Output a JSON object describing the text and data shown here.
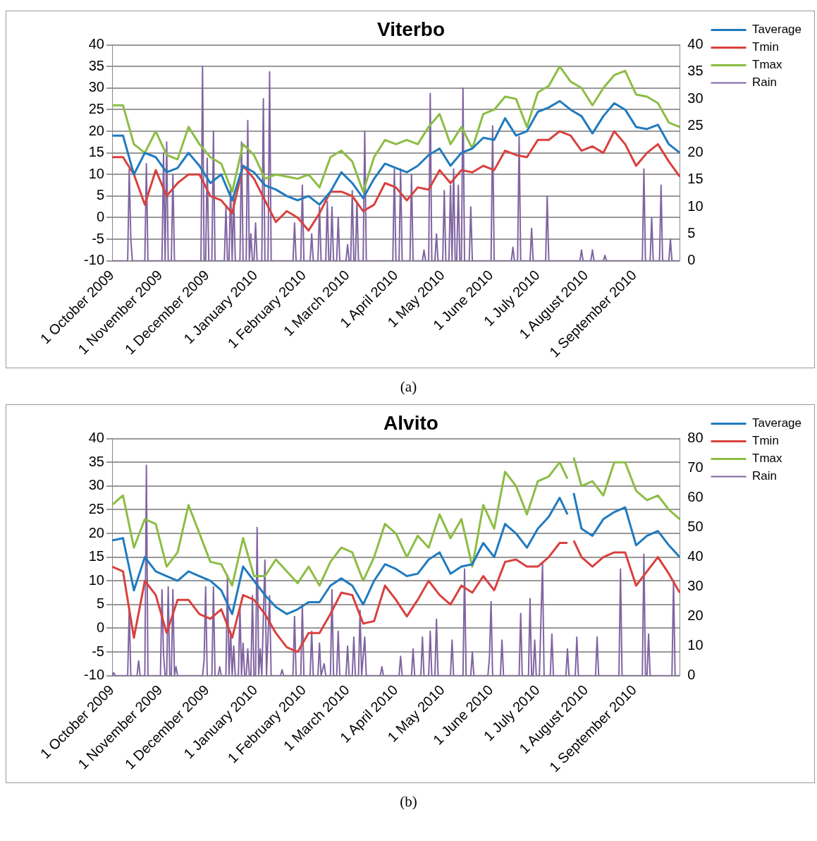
{
  "chart_data": [
    {
      "type": "line",
      "title": "Viterbo",
      "annotations": [
        "(a)"
      ],
      "legend": "top right",
      "grid": "y",
      "marker": "none",
      "xlim": [
        "2009-10-01",
        "2010-09-30"
      ],
      "xticks": [
        {
          "value": "2009-10-01",
          "label": "1 October 2009"
        },
        {
          "value": "2009-11-01",
          "label": "1 November 2009"
        },
        {
          "value": "2009-12-01",
          "label": "1 December 2009"
        },
        {
          "value": "2010-01-01",
          "label": "1 January 2010"
        },
        {
          "value": "2010-02-01",
          "label": "1 February 2010"
        },
        {
          "value": "2010-03-01",
          "label": "1 March 2010"
        },
        {
          "value": "2010-04-01",
          "label": "1 April 2010"
        },
        {
          "value": "2010-05-01",
          "label": "1 May 2010"
        },
        {
          "value": "2010-06-01",
          "label": "1 June 2010"
        },
        {
          "value": "2010-07-01",
          "label": "1 July 2010"
        },
        {
          "value": "2010-08-01",
          "label": "1 August 2010"
        },
        {
          "value": "2010-09-01",
          "label": "1 September 2010"
        }
      ],
      "ylim": [
        -10,
        40
      ],
      "yticks": [
        -10,
        -5,
        0,
        5,
        10,
        15,
        20,
        25,
        30,
        35,
        40
      ],
      "y2lim": [
        0,
        40
      ],
      "y2ticks": [
        0,
        5,
        10,
        15,
        20,
        25,
        30,
        35,
        40
      ],
      "x": [
        "2009-10-01",
        "2009-10-08",
        "2009-10-15",
        "2009-10-22",
        "2009-10-29",
        "2009-11-05",
        "2009-11-12",
        "2009-11-19",
        "2009-11-26",
        "2009-12-03",
        "2009-12-10",
        "2009-12-17",
        "2009-12-24",
        "2009-12-31",
        "2010-01-07",
        "2010-01-14",
        "2010-01-21",
        "2010-01-28",
        "2010-02-04",
        "2010-02-11",
        "2010-02-18",
        "2010-02-25",
        "2010-03-04",
        "2010-03-11",
        "2010-03-18",
        "2010-03-25",
        "2010-04-01",
        "2010-04-08",
        "2010-04-15",
        "2010-04-22",
        "2010-04-29",
        "2010-05-06",
        "2010-05-13",
        "2010-05-20",
        "2010-05-27",
        "2010-06-03",
        "2010-06-10",
        "2010-06-17",
        "2010-06-24",
        "2010-07-01",
        "2010-07-08",
        "2010-07-15",
        "2010-07-22",
        "2010-07-29",
        "2010-08-05",
        "2010-08-12",
        "2010-08-19",
        "2010-08-26",
        "2010-09-02",
        "2010-09-09",
        "2010-09-16",
        "2010-09-23",
        "2010-09-30"
      ],
      "series": [
        {
          "name": "Taverage",
          "color": "#1f7bbf",
          "values": [
            19,
            19,
            10,
            15,
            14,
            10.5,
            11.5,
            15,
            12,
            8,
            10,
            4,
            12,
            10.5,
            7.5,
            6.5,
            5,
            4,
            5,
            3,
            6,
            10.5,
            8,
            4.5,
            9,
            12.5,
            11.5,
            10.5,
            12,
            14.5,
            16,
            12,
            15,
            16,
            18.5,
            18,
            23,
            19,
            20,
            24.5,
            25.5,
            27,
            25,
            23.5,
            19.5,
            23.5,
            26.5,
            25,
            21,
            20.5,
            21.5,
            17,
            15
          ]
        },
        {
          "name": "Tmin",
          "color": "#d9413e",
          "values": [
            14,
            14,
            10,
            3,
            11,
            5,
            8,
            10,
            10,
            5,
            4,
            1,
            12,
            9,
            4,
            -1,
            1.5,
            0,
            -3,
            1,
            6,
            6,
            5,
            1.5,
            3,
            8,
            7,
            4,
            7,
            6.5,
            11,
            8,
            11,
            10.5,
            12,
            11,
            15.5,
            14.5,
            14,
            18,
            18,
            20,
            19,
            15.5,
            16.5,
            15,
            20,
            17,
            12,
            15,
            17,
            13,
            9.5
          ]
        },
        {
          "name": "Tmax",
          "color": "#8cbd45",
          "values": [
            26,
            26,
            17,
            15,
            20,
            14.5,
            13.5,
            21,
            17,
            14,
            12.5,
            6,
            17,
            14.5,
            9,
            10,
            9.5,
            9,
            10,
            7,
            14,
            15.5,
            13,
            6,
            14,
            18,
            17,
            18,
            17,
            21,
            24,
            17,
            21,
            16,
            24,
            25,
            28,
            27.5,
            21,
            29,
            30.5,
            35,
            31.5,
            30,
            26,
            30,
            33,
            34,
            28.5,
            28,
            26.5,
            22,
            21
          ]
        },
        {
          "name": "Rain",
          "color": "#8064a2",
          "axis": "y2",
          "x": [
            "2009-10-01",
            "2009-10-11",
            "2009-10-12",
            "2009-10-13",
            "2009-10-14",
            "2009-10-22",
            "2009-10-23",
            "2009-10-24",
            "2009-11-02",
            "2009-11-03",
            "2009-11-04",
            "2009-11-05",
            "2009-11-06",
            "2009-11-08",
            "2009-11-09",
            "2009-11-10",
            "2009-11-27",
            "2009-11-28",
            "2009-11-29",
            "2009-11-30",
            "2009-12-01",
            "2009-12-02",
            "2009-12-04",
            "2009-12-05",
            "2009-12-06",
            "2009-12-12",
            "2009-12-13",
            "2009-12-14",
            "2009-12-15",
            "2009-12-16",
            "2009-12-17",
            "2009-12-18",
            "2009-12-19",
            "2009-12-22",
            "2009-12-23",
            "2009-12-24",
            "2009-12-26",
            "2009-12-27",
            "2009-12-28",
            "2009-12-29",
            "2009-12-30",
            "2009-12-31",
            "2010-01-01",
            "2010-01-02",
            "2010-01-05",
            "2010-01-06",
            "2010-01-07",
            "2010-01-09",
            "2010-01-10",
            "2010-01-11",
            "2010-01-25",
            "2010-01-26",
            "2010-01-27",
            "2010-01-30",
            "2010-01-31",
            "2010-02-01",
            "2010-02-05",
            "2010-02-06",
            "2010-02-07",
            "2010-02-10",
            "2010-02-11",
            "2010-02-12",
            "2010-02-15",
            "2010-02-16",
            "2010-02-17",
            "2010-02-18",
            "2010-02-19",
            "2010-02-20",
            "2010-02-22",
            "2010-02-23",
            "2010-02-24",
            "2010-02-28",
            "2010-03-01",
            "2010-03-02",
            "2010-03-03",
            "2010-03-04",
            "2010-03-05",
            "2010-03-06",
            "2010-03-07",
            "2010-03-08",
            "2010-03-11",
            "2010-03-12",
            "2010-03-13",
            "2010-03-30",
            "2010-03-31",
            "2010-04-01",
            "2010-04-03",
            "2010-04-04",
            "2010-04-05",
            "2010-04-10",
            "2010-04-11",
            "2010-04-12",
            "2010-04-18",
            "2010-04-19",
            "2010-04-20",
            "2010-04-22",
            "2010-04-23",
            "2010-04-24",
            "2010-04-26",
            "2010-04-27",
            "2010-04-28",
            "2010-05-01",
            "2010-05-02",
            "2010-05-03",
            "2010-05-05",
            "2010-05-06",
            "2010-05-07",
            "2010-05-08",
            "2010-05-09",
            "2010-05-10",
            "2010-05-11",
            "2010-05-12",
            "2010-05-13",
            "2010-05-14",
            "2010-05-15",
            "2010-05-18",
            "2010-05-19",
            "2010-05-20",
            "2010-06-01",
            "2010-06-02",
            "2010-06-03",
            "2010-06-14",
            "2010-06-15",
            "2010-06-16",
            "2010-06-18",
            "2010-06-19",
            "2010-06-20",
            "2010-06-26",
            "2010-06-27",
            "2010-06-28",
            "2010-07-06",
            "2010-07-07",
            "2010-07-08",
            "2010-07-28",
            "2010-07-29",
            "2010-07-30",
            "2010-08-04",
            "2010-08-05",
            "2010-08-06",
            "2010-08-12",
            "2010-08-13",
            "2010-08-14",
            "2010-09-06",
            "2010-09-07",
            "2010-09-08",
            "2010-09-11",
            "2010-09-12",
            "2010-09-13",
            "2010-09-17",
            "2010-09-18",
            "2010-09-19",
            "2010-09-23",
            "2010-09-24",
            "2010-09-25",
            "2010-09-30"
          ],
          "values": [
            0,
            0,
            17,
            4,
            0,
            0,
            18,
            0,
            0,
            20,
            0,
            22,
            0,
            0,
            16,
            0,
            0,
            36,
            0,
            0,
            19,
            0,
            0,
            24,
            0,
            0,
            10,
            0,
            0,
            14,
            0,
            12,
            0,
            0,
            22,
            0,
            0,
            26,
            0,
            5,
            0,
            0,
            7,
            0,
            0,
            30,
            0,
            0,
            35,
            0,
            0,
            7,
            0,
            0,
            14,
            0,
            0,
            5,
            0,
            0,
            10,
            0,
            0,
            11,
            0,
            0,
            10,
            0,
            0,
            8,
            0,
            0,
            3,
            0,
            0,
            13,
            0,
            0,
            11,
            0,
            0,
            24,
            0,
            0,
            17,
            0,
            0,
            17,
            0,
            0,
            16,
            0,
            0,
            2,
            0,
            0,
            31,
            0,
            0,
            5,
            0,
            0,
            13,
            0,
            0,
            14,
            0,
            17,
            0,
            0,
            14,
            0,
            0,
            32,
            0,
            0,
            10,
            0,
            0,
            25,
            0,
            0,
            2.5,
            0,
            0,
            23,
            0,
            0,
            6,
            0,
            0,
            12,
            0,
            0,
            2,
            0,
            0,
            2,
            0,
            0,
            1,
            0,
            0,
            17,
            0,
            0,
            8,
            0,
            0,
            14,
            0,
            0,
            4,
            0,
            0
          ]
        }
      ]
    },
    {
      "type": "line",
      "title": "Alvito",
      "annotations": [
        "(b)"
      ],
      "legend": "top right",
      "grid": "y",
      "marker": "none",
      "xlim": [
        "2009-10-01",
        "2010-09-30"
      ],
      "xticks": [
        {
          "value": "2009-10-01",
          "label": "1 October 2009"
        },
        {
          "value": "2009-11-01",
          "label": "1 November 2009"
        },
        {
          "value": "2009-12-01",
          "label": "1 December 2009"
        },
        {
          "value": "2010-01-01",
          "label": "1 January 2010"
        },
        {
          "value": "2010-02-01",
          "label": "1 February 2010"
        },
        {
          "value": "2010-03-01",
          "label": "1 March 2010"
        },
        {
          "value": "2010-04-01",
          "label": "1 April 2010"
        },
        {
          "value": "2010-05-01",
          "label": "1 May 2010"
        },
        {
          "value": "2010-06-01",
          "label": "1 June 2010"
        },
        {
          "value": "2010-07-01",
          "label": "1 July 2010"
        },
        {
          "value": "2010-08-01",
          "label": "1 August 2010"
        },
        {
          "value": "2010-09-01",
          "label": "1 September 2010"
        }
      ],
      "ylim": [
        -10,
        40
      ],
      "yticks": [
        -10,
        -5,
        0,
        5,
        10,
        15,
        20,
        25,
        30,
        35,
        40
      ],
      "y2lim": [
        0,
        80
      ],
      "y2ticks": [
        0,
        10,
        20,
        30,
        40,
        50,
        60,
        70,
        80
      ],
      "x": [
        "2009-10-01",
        "2009-10-08",
        "2009-10-15",
        "2009-10-22",
        "2009-10-29",
        "2009-11-05",
        "2009-11-12",
        "2009-11-19",
        "2009-11-26",
        "2009-12-03",
        "2009-12-10",
        "2009-12-17",
        "2009-12-24",
        "2009-12-31",
        "2010-01-07",
        "2010-01-14",
        "2010-01-21",
        "2010-01-28",
        "2010-02-04",
        "2010-02-11",
        "2010-02-18",
        "2010-02-25",
        "2010-03-04",
        "2010-03-11",
        "2010-03-18",
        "2010-03-25",
        "2010-04-01",
        "2010-04-08",
        "2010-04-15",
        "2010-04-22",
        "2010-04-29",
        "2010-05-06",
        "2010-05-13",
        "2010-05-20",
        "2010-05-27",
        "2010-06-03",
        "2010-06-10",
        "2010-06-17",
        "2010-06-24",
        "2010-07-01",
        "2010-07-08",
        "2010-07-15",
        "2010-07-20",
        "2010-07-22",
        "2010-07-24",
        "2010-07-29",
        "2010-08-05",
        "2010-08-12",
        "2010-08-19",
        "2010-08-26",
        "2010-09-02",
        "2010-09-09",
        "2010-09-16",
        "2010-09-23",
        "2010-09-30"
      ],
      "series": [
        {
          "name": "Taverage",
          "color": "#1f7bbf",
          "values": [
            18.5,
            19,
            8,
            15,
            12,
            11,
            10,
            12,
            11,
            10,
            8,
            3,
            13,
            10,
            7,
            4.5,
            3,
            4,
            5.5,
            5.5,
            9,
            10.5,
            9,
            5,
            10,
            13.5,
            12.5,
            11,
            11.5,
            14.5,
            16,
            11.5,
            13,
            13.5,
            18,
            15,
            22,
            20,
            17,
            21,
            23.5,
            27.5,
            24,
            null,
            28.5,
            21,
            19.5,
            23,
            24.5,
            25.5,
            17.5,
            19.5,
            20.5,
            17.5,
            15
          ]
        },
        {
          "name": "Tmin",
          "color": "#d9413e",
          "values": [
            13,
            12,
            -2,
            10,
            7,
            -1,
            6,
            6,
            3,
            2,
            4,
            -2,
            7,
            6,
            3,
            -1,
            -4,
            -5,
            -1,
            -1,
            3,
            7.5,
            7,
            1,
            1.5,
            9,
            6,
            2.5,
            6,
            10,
            7,
            5,
            9,
            7.5,
            11,
            8,
            14,
            14.5,
            13,
            13,
            15,
            18,
            18,
            null,
            18.5,
            15,
            13,
            15,
            16,
            16,
            9,
            12,
            15,
            11.5,
            7.5
          ]
        },
        {
          "name": "Tmax",
          "color": "#8cbd45",
          "values": [
            26,
            28,
            17,
            23,
            22,
            13,
            16,
            26,
            20,
            14,
            13.5,
            9,
            19,
            11,
            11,
            14.5,
            12,
            9.5,
            13,
            9,
            14,
            17,
            16,
            10,
            15,
            22,
            20,
            15,
            19.5,
            17,
            24,
            19,
            23,
            13,
            26,
            21,
            33,
            30,
            24,
            31,
            32,
            35,
            31.5,
            null,
            36,
            30,
            31,
            28,
            35,
            35,
            29,
            27,
            28,
            25,
            23
          ]
        },
        {
          "name": "Rain",
          "color": "#8064a2",
          "axis": "y2",
          "x": [
            "2009-10-01",
            "2009-10-02",
            "2009-10-03",
            "2009-10-11",
            "2009-10-12",
            "2009-10-13",
            "2009-10-17",
            "2009-10-18",
            "2009-10-19",
            "2009-10-22",
            "2009-10-23",
            "2009-10-24",
            "2009-11-01",
            "2009-11-02",
            "2009-11-03",
            "2009-11-04",
            "2009-11-05",
            "2009-11-06",
            "2009-11-07",
            "2009-11-08",
            "2009-11-09",
            "2009-11-10",
            "2009-11-11",
            "2009-11-12",
            "2009-11-28",
            "2009-11-29",
            "2009-11-30",
            "2009-12-01",
            "2009-12-04",
            "2009-12-05",
            "2009-12-06",
            "2009-12-08",
            "2009-12-09",
            "2009-12-10",
            "2009-12-13",
            "2009-12-14",
            "2009-12-15",
            "2009-12-16",
            "2009-12-17",
            "2009-12-18",
            "2009-12-19",
            "2009-12-21",
            "2009-12-22",
            "2009-12-23",
            "2009-12-24",
            "2009-12-25",
            "2009-12-26",
            "2009-12-27",
            "2009-12-28",
            "2009-12-29",
            "2009-12-30",
            "2009-12-31",
            "2010-01-01",
            "2010-01-02",
            "2010-01-03",
            "2010-01-04",
            "2010-01-05",
            "2010-01-07",
            "2010-01-08",
            "2010-01-10",
            "2010-01-11",
            "2010-01-17",
            "2010-01-18",
            "2010-01-19",
            "2010-01-25",
            "2010-01-26",
            "2010-01-27",
            "2010-01-30",
            "2010-01-31",
            "2010-02-01",
            "2010-02-05",
            "2010-02-06",
            "2010-02-07",
            "2010-02-10",
            "2010-02-11",
            "2010-02-12",
            "2010-02-14",
            "2010-02-15",
            "2010-02-18",
            "2010-02-19",
            "2010-02-20",
            "2010-02-22",
            "2010-02-23",
            "2010-02-24",
            "2010-02-28",
            "2010-03-01",
            "2010-03-02",
            "2010-03-04",
            "2010-03-05",
            "2010-03-06",
            "2010-03-08",
            "2010-03-09",
            "2010-03-10",
            "2010-03-12",
            "2010-03-13",
            "2010-03-22",
            "2010-03-23",
            "2010-03-24",
            "2010-04-03",
            "2010-04-04",
            "2010-04-05",
            "2010-04-11",
            "2010-04-12",
            "2010-04-13",
            "2010-04-17",
            "2010-04-18",
            "2010-04-19",
            "2010-04-22",
            "2010-04-23",
            "2010-04-24",
            "2010-04-26",
            "2010-04-27",
            "2010-04-28",
            "2010-05-06",
            "2010-05-07",
            "2010-05-08",
            "2010-05-14",
            "2010-05-15",
            "2010-05-16",
            "2010-05-19",
            "2010-05-20",
            "2010-05-21",
            "2010-05-30",
            "2010-05-31",
            "2010-06-01",
            "2010-06-02",
            "2010-06-07",
            "2010-06-08",
            "2010-06-09",
            "2010-06-19",
            "2010-06-20",
            "2010-06-21",
            "2010-06-25",
            "2010-06-26",
            "2010-06-27",
            "2010-06-28",
            "2010-06-29",
            "2010-06-30",
            "2010-07-02",
            "2010-07-03",
            "2010-07-04",
            "2010-07-05",
            "2010-07-09",
            "2010-07-10",
            "2010-07-11",
            "2010-07-19",
            "2010-07-20",
            "2010-07-21",
            "2010-07-25",
            "2010-07-26",
            "2010-07-27",
            "2010-08-07",
            "2010-08-08",
            "2010-08-09",
            "2010-08-22",
            "2010-08-23",
            "2010-08-24",
            "2010-09-06",
            "2010-09-07",
            "2010-09-08",
            "2010-09-09",
            "2010-09-10",
            "2010-09-11",
            "2010-09-25",
            "2010-09-26",
            "2010-09-27",
            "2010-09-30"
          ],
          "values": [
            0,
            1,
            0,
            0,
            23,
            0,
            0,
            5,
            0,
            0,
            71,
            0,
            0,
            29,
            7,
            0,
            0,
            30,
            0,
            0,
            29,
            0,
            3,
            0,
            0,
            5,
            30,
            0,
            0,
            30,
            0,
            0,
            3,
            0,
            0,
            34,
            0,
            15,
            0,
            10,
            0,
            0,
            23,
            0,
            11,
            0,
            0,
            9,
            0,
            0,
            27,
            0,
            0,
            50,
            0,
            9,
            0,
            39,
            0,
            27,
            0,
            0,
            2,
            0,
            0,
            20,
            0,
            0,
            24,
            0,
            0,
            15,
            0,
            0,
            11,
            0,
            4,
            0,
            0,
            29,
            0,
            0,
            15,
            0,
            0,
            10,
            0,
            0,
            13,
            0,
            0,
            22,
            0,
            13,
            0,
            0,
            3,
            0,
            0,
            6.5,
            0,
            0,
            9,
            0,
            0,
            13,
            0,
            0,
            15,
            0,
            0,
            19,
            0,
            0,
            12,
            0,
            0,
            36,
            0,
            0,
            8,
            0,
            0,
            6.5,
            25,
            0,
            0,
            12,
            0,
            0,
            21,
            0,
            0,
            26,
            0,
            0,
            12,
            0,
            0,
            19,
            38,
            0,
            0,
            14,
            0,
            0,
            9,
            0,
            0,
            13,
            0,
            0,
            13,
            0,
            0,
            36,
            0,
            0,
            41,
            0,
            0,
            14,
            0,
            0,
            32,
            0,
            0
          ]
        }
      ]
    }
  ]
}
